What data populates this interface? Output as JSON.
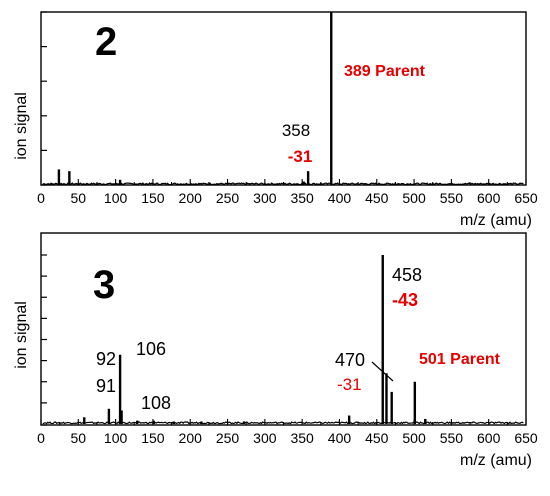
{
  "chart_data": [
    {
      "type": "line",
      "panel_label": "2",
      "xlabel": "m/z (amu)",
      "ylabel": "ion signal",
      "xlim": [
        0,
        650
      ],
      "x_ticks": [
        0,
        25,
        50,
        75,
        100,
        125,
        150,
        175,
        200,
        225,
        250,
        275,
        300,
        325,
        350,
        375,
        400,
        425,
        450,
        475,
        500,
        525,
        550,
        575,
        600,
        625,
        650
      ],
      "x_tick_labels": [
        "0",
        "50",
        "100",
        "150",
        "200",
        "250",
        "300",
        "350",
        "400",
        "450",
        "500",
        "550",
        "600",
        "650"
      ],
      "ylim": [
        0,
        100
      ],
      "y_ticks": [
        0,
        20,
        40,
        60,
        80,
        100
      ],
      "peaks": [
        {
          "x": 14,
          "y": 0.6
        },
        {
          "x": 24,
          "y": 9
        },
        {
          "x": 38,
          "y": 8
        },
        {
          "x": 106,
          "y": 3
        },
        {
          "x": 352,
          "y": 2
        },
        {
          "x": 358,
          "y": 8
        },
        {
          "x": 389,
          "y": 100
        }
      ],
      "annotations": [
        {
          "text": "389 Parent",
          "color": "#e60000",
          "bold": true
        },
        {
          "text": "358",
          "color": "#000000",
          "bold": false
        },
        {
          "text": "-31",
          "color": "#e60000",
          "bold": true
        }
      ]
    },
    {
      "type": "line",
      "panel_label": "3",
      "xlabel": "m/z (amu)",
      "ylabel": "ion signal",
      "xlim": [
        0,
        650
      ],
      "x_ticks": [
        0,
        25,
        50,
        75,
        100,
        125,
        150,
        175,
        200,
        225,
        250,
        275,
        300,
        325,
        350,
        375,
        400,
        425,
        450,
        475,
        500,
        525,
        550,
        575,
        600,
        625,
        650
      ],
      "x_tick_labels": [
        "0",
        "50",
        "100",
        "150",
        "200",
        "250",
        "300",
        "350",
        "400",
        "450",
        "500",
        "550",
        "600",
        "650"
      ],
      "ylim": [
        0,
        100
      ],
      "y_ticks": [
        0,
        12.5,
        25,
        37.5,
        50,
        62.5,
        75,
        87.5,
        100
      ],
      "peaks": [
        {
          "x": 58,
          "y": 4
        },
        {
          "x": 91,
          "y": 9
        },
        {
          "x": 106,
          "y": 41
        },
        {
          "x": 108,
          "y": 8
        },
        {
          "x": 129,
          "y": 2
        },
        {
          "x": 151,
          "y": 2
        },
        {
          "x": 178,
          "y": 1.5
        },
        {
          "x": 215,
          "y": 1.5
        },
        {
          "x": 272,
          "y": 1.5
        },
        {
          "x": 413,
          "y": 5
        },
        {
          "x": 458,
          "y": 100
        },
        {
          "x": 463,
          "y": 30
        },
        {
          "x": 470,
          "y": 19
        },
        {
          "x": 501,
          "y": 25
        },
        {
          "x": 515,
          "y": 3
        }
      ],
      "annotations": [
        {
          "text": "106",
          "color": "#000000",
          "bold": false
        },
        {
          "text": "92",
          "color": "#000000",
          "bold": false
        },
        {
          "text": "91",
          "color": "#000000",
          "bold": false
        },
        {
          "text": "108",
          "color": "#000000",
          "bold": false
        },
        {
          "text": "458",
          "color": "#000000",
          "bold": false
        },
        {
          "text": "-43",
          "color": "#e60000",
          "bold": true
        },
        {
          "text": "470",
          "color": "#000000",
          "bold": false
        },
        {
          "text": "-31",
          "color": "#e60000",
          "bold": false
        },
        {
          "text": "501 Parent",
          "color": "#e60000",
          "bold": true
        }
      ]
    }
  ]
}
